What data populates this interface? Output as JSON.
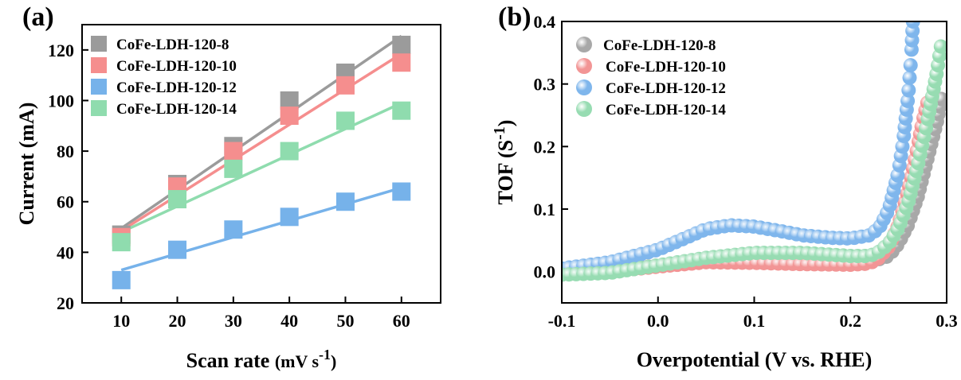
{
  "chart_data": [
    {
      "type": "scatter",
      "panel_label": "(a)",
      "xlabel_main": "Scan rate ",
      "xlabel_unit": "(mV s",
      "xlabel_sup": "-1",
      "xlabel_close": ")",
      "ylabel": "Current  (mA)",
      "xlim": [
        3,
        67
      ],
      "ylim": [
        20,
        130
      ],
      "xticks": [
        10,
        20,
        30,
        40,
        50,
        60
      ],
      "yticks": [
        20,
        40,
        60,
        80,
        100,
        120
      ],
      "fit_lines": true,
      "legend_position": "top-left",
      "series": [
        {
          "name": "CoFe-LDH-120-8",
          "color": "#9b9b9b",
          "x": [
            10,
            20,
            30,
            40,
            50,
            60
          ],
          "y": [
            47,
            67,
            82,
            100,
            111,
            122
          ],
          "fit": [
            [
              10,
              49.5
            ],
            [
              60,
              125.5
            ]
          ]
        },
        {
          "name": "CoFe-LDH-120-10",
          "color": "#f58e8e",
          "x": [
            10,
            20,
            30,
            40,
            50,
            60
          ],
          "y": [
            46,
            66,
            80,
            94,
            106,
            115
          ],
          "fit": [
            [
              10,
              48.5
            ],
            [
              60,
              118.5
            ]
          ]
        },
        {
          "name": "CoFe-LDH-120-12",
          "color": "#76b2ea",
          "x": [
            10,
            20,
            30,
            40,
            50,
            60
          ],
          "y": [
            29,
            41,
            49,
            54,
            60,
            64
          ],
          "fit": [
            [
              10,
              33
            ],
            [
              60,
              65.5
            ]
          ]
        },
        {
          "name": "CoFe-LDH-120-14",
          "color": "#8fdcae",
          "x": [
            10,
            20,
            30,
            40,
            50,
            60
          ],
          "y": [
            44,
            61,
            73,
            80,
            92,
            96
          ],
          "fit": [
            [
              10,
              48
            ],
            [
              60,
              99
            ]
          ]
        }
      ]
    },
    {
      "type": "scatter",
      "panel_label": "(b)",
      "xlabel": "Overpotential (V vs. RHE)",
      "ylabel_main": "TOF (S",
      "ylabel_sup": "-1",
      "ylabel_close": ")",
      "xlim": [
        -0.1,
        0.3
      ],
      "ylim": [
        -0.05,
        0.4
      ],
      "xticks": [
        "-0.1",
        "0.0",
        "0.1",
        "0.2",
        "0.3"
      ],
      "xtick_values": [
        -0.1,
        0.0,
        0.1,
        0.2,
        0.3
      ],
      "yticks": [
        "0.0",
        "0.1",
        "0.2",
        "0.3",
        "0.4"
      ],
      "ytick_values": [
        0.0,
        0.1,
        0.2,
        0.3,
        0.4
      ],
      "legend_position": "top-left",
      "series": [
        {
          "name": "CoFe-LDH-120-8",
          "color": "#a8a8a8",
          "x": [
            -0.1,
            -0.05,
            0.0,
            0.05,
            0.1,
            0.15,
            0.2,
            0.22,
            0.24,
            0.25,
            0.26,
            0.27,
            0.28,
            0.29,
            0.295
          ],
          "y": [
            -0.002,
            0.0,
            0.01,
            0.018,
            0.017,
            0.016,
            0.014,
            0.015,
            0.025,
            0.045,
            0.075,
            0.12,
            0.18,
            0.24,
            0.28
          ]
        },
        {
          "name": "CoFe-LDH-120-10",
          "color": "#f29595",
          "x": [
            -0.1,
            -0.05,
            0.0,
            0.05,
            0.1,
            0.15,
            0.2,
            0.22,
            0.23,
            0.24,
            0.25,
            0.26,
            0.27,
            0.275,
            0.28
          ],
          "y": [
            -0.002,
            0.0,
            0.008,
            0.015,
            0.014,
            0.012,
            0.011,
            0.013,
            0.022,
            0.04,
            0.075,
            0.13,
            0.2,
            0.24,
            0.27
          ]
        },
        {
          "name": "CoFe-LDH-120-12",
          "color": "#7fb6ec",
          "x": [
            -0.1,
            -0.05,
            0.0,
            0.05,
            0.075,
            0.1,
            0.13,
            0.15,
            0.18,
            0.2,
            0.22,
            0.23,
            0.24,
            0.25,
            0.255,
            0.26,
            0.263,
            0.265
          ],
          "y": [
            0.005,
            0.015,
            0.035,
            0.068,
            0.074,
            0.072,
            0.064,
            0.058,
            0.054,
            0.053,
            0.058,
            0.07,
            0.1,
            0.16,
            0.21,
            0.28,
            0.34,
            0.4
          ]
        },
        {
          "name": "CoFe-LDH-120-14",
          "color": "#97dcb2",
          "x": [
            -0.1,
            -0.05,
            0.0,
            0.05,
            0.1,
            0.15,
            0.2,
            0.22,
            0.23,
            0.24,
            0.25,
            0.26,
            0.27,
            0.28,
            0.29,
            0.295
          ],
          "y": [
            -0.005,
            -0.002,
            0.01,
            0.022,
            0.03,
            0.03,
            0.025,
            0.025,
            0.032,
            0.045,
            0.07,
            0.11,
            0.17,
            0.24,
            0.32,
            0.37
          ]
        }
      ]
    }
  ]
}
